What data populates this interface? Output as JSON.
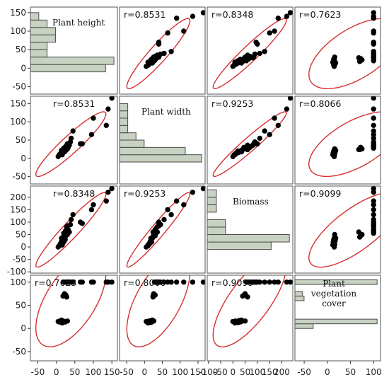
{
  "chart_data": {
    "type": "scatter-matrix",
    "variables": [
      {
        "key": "height",
        "label": [
          "Plant height"
        ],
        "ticks": [
          -50,
          0,
          50,
          100,
          150
        ],
        "range": [
          -70,
          165
        ]
      },
      {
        "key": "width",
        "label": [
          "Plant width"
        ],
        "ticks": [
          -50,
          0,
          50,
          100,
          150
        ],
        "range": [
          -70,
          170
        ]
      },
      {
        "key": "biomass",
        "label": [
          "Biomass"
        ],
        "ticks": [
          -100,
          -50,
          0,
          50,
          100,
          150,
          200
        ],
        "range": [
          -105,
          245
        ]
      },
      {
        "key": "cover",
        "label": [
          "Plant",
          "vegetation",
          "cover"
        ],
        "ticks": [
          -50,
          0,
          50,
          100
        ],
        "range": [
          -70,
          115
        ]
      }
    ],
    "correlations": {
      "height-width": "r=0.8531",
      "height-biomass": "r=0.8348",
      "height-cover": "r=0.7623",
      "width-biomass": "r=0.9253",
      "width-cover": "r=0.8066",
      "biomass-cover": "r=0.9099"
    },
    "points": {
      "height": [
        5,
        8,
        10,
        12,
        14,
        15,
        16,
        18,
        20,
        12,
        14,
        16,
        18,
        22,
        24,
        26,
        28,
        20,
        22,
        25,
        28,
        30,
        32,
        30,
        35,
        38,
        40,
        45,
        70,
        95,
        100,
        135,
        140,
        150,
        65
      ],
      "width": [
        5,
        10,
        12,
        14,
        16,
        18,
        10,
        18,
        20,
        14,
        22,
        16,
        24,
        26,
        20,
        30,
        24,
        28,
        18,
        32,
        35,
        26,
        30,
        40,
        36,
        45,
        55,
        75,
        40,
        65,
        110,
        90,
        135,
        165,
        40
      ],
      "biomass": [
        0,
        5,
        10,
        15,
        20,
        25,
        8,
        30,
        20,
        12,
        35,
        22,
        40,
        50,
        30,
        45,
        60,
        55,
        35,
        65,
        80,
        50,
        70,
        85,
        60,
        90,
        110,
        130,
        95,
        150,
        170,
        185,
        220,
        235,
        100
      ],
      "cover": [
        15,
        14,
        16,
        15,
        13,
        17,
        12,
        16,
        14,
        15,
        18,
        13,
        70,
        75,
        14,
        72,
        68,
        100,
        15,
        100,
        100,
        16,
        100,
        100,
        100,
        100,
        100,
        100,
        100,
        100,
        100,
        100,
        100,
        100,
        100
      ]
    },
    "histograms": {
      "height": {
        "bins": [
          [
            -10,
            10,
            9
          ],
          [
            10,
            30,
            10
          ],
          [
            30,
            50,
            2
          ],
          [
            50,
            70,
            2
          ],
          [
            70,
            90,
            3
          ],
          [
            90,
            110,
            3
          ],
          [
            110,
            130,
            2
          ],
          [
            130,
            150,
            1
          ]
        ],
        "max": 10
      },
      "width": {
        "bins": [
          [
            -10,
            10,
            10
          ],
          [
            10,
            30,
            8
          ],
          [
            30,
            50,
            3
          ],
          [
            50,
            70,
            2
          ],
          [
            70,
            90,
            1
          ],
          [
            90,
            110,
            1
          ],
          [
            110,
            130,
            1
          ],
          [
            130,
            150,
            1
          ]
        ],
        "max": 10
      },
      "biomass": {
        "bins": [
          [
            -10,
            20,
            7
          ],
          [
            20,
            50,
            9
          ],
          [
            50,
            80,
            2
          ],
          [
            80,
            110,
            2
          ],
          [
            110,
            140,
            0
          ],
          [
            140,
            170,
            1
          ],
          [
            170,
            200,
            1
          ],
          [
            200,
            230,
            1
          ],
          [
            230,
            250,
            0
          ]
        ],
        "max": 9
      },
      "cover": {
        "bins": [
          [
            0,
            10,
            2
          ],
          [
            10,
            20,
            9
          ],
          [
            20,
            30,
            0
          ],
          [
            30,
            40,
            0
          ],
          [
            60,
            70,
            1
          ],
          [
            70,
            80,
            0.8
          ],
          [
            95,
            105,
            9
          ]
        ],
        "max": 9
      }
    },
    "colors": {
      "points": "#000000",
      "ellipse": "#d62f2f",
      "bar_fill": "#c8d2c2",
      "bar_stroke": "#4a4a4a",
      "frame": "#555555"
    }
  }
}
